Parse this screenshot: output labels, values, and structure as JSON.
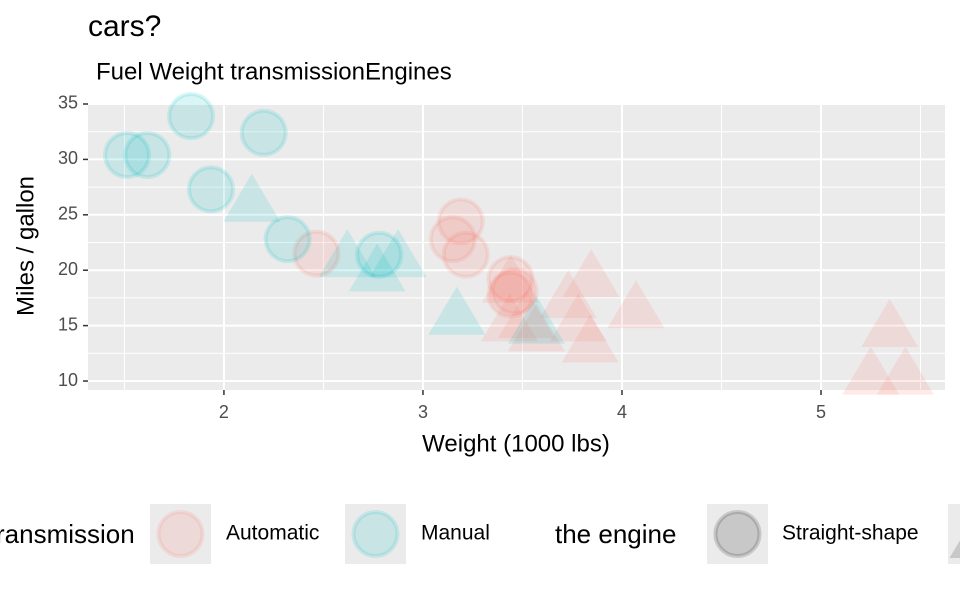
{
  "chart_data": {
    "type": "scatter",
    "title": "cars?",
    "subtitle": "Fuel Weight transmissionEngines",
    "x_label": "Weight (1000 lbs)",
    "y_label": "Miles / gallon",
    "xlim": [
      1.317,
      5.623
    ],
    "xticks": [
      2,
      3,
      4,
      5
    ],
    "ylim": [
      9.19,
      35.09
    ],
    "yticks": [
      10,
      15,
      20,
      25,
      30,
      35
    ],
    "grid": true,
    "legend_position": "bottom",
    "color_legend_title": "ransmission",
    "shape_legend": {
      "title": "the engine",
      "labels": [
        "Straight-shape"
      ]
    },
    "series": [
      {
        "name": "Automatic",
        "color": "#F8766D",
        "x": [
          3.215,
          3.44,
          3.46,
          3.57,
          3.19,
          3.15,
          3.44,
          3.44,
          4.07,
          3.73,
          3.78,
          5.25,
          5.424,
          5.345,
          2.465,
          3.52,
          3.435,
          3.84,
          3.845
        ],
        "values": [
          21.4,
          18.7,
          18.1,
          14.3,
          24.4,
          22.8,
          19.2,
          17.8,
          16.4,
          17.3,
          15.2,
          10.4,
          10.4,
          14.7,
          21.5,
          15.5,
          15.2,
          13.3,
          19.2
        ],
        "shapes": [
          "circle",
          "triangle",
          "circle",
          "triangle",
          "circle",
          "circle",
          "circle",
          "circle",
          "triangle",
          "triangle",
          "triangle",
          "triangle",
          "triangle",
          "triangle",
          "circle",
          "triangle",
          "triangle",
          "triangle",
          "triangle"
        ]
      },
      {
        "name": "Manual",
        "color": "#00BFC4",
        "x": [
          2.62,
          2.875,
          2.32,
          2.2,
          1.615,
          1.835,
          1.935,
          2.14,
          1.513,
          3.17,
          2.77,
          3.57,
          2.78
        ],
        "values": [
          21.0,
          21.0,
          22.8,
          32.4,
          30.4,
          33.9,
          27.3,
          26.0,
          30.4,
          15.8,
          19.7,
          15.0,
          21.4
        ],
        "shapes": [
          "triangle",
          "triangle",
          "circle",
          "circle",
          "circle",
          "circle",
          "circle",
          "triangle",
          "circle",
          "triangle",
          "triangle",
          "triangle",
          "circle"
        ]
      }
    ]
  }
}
